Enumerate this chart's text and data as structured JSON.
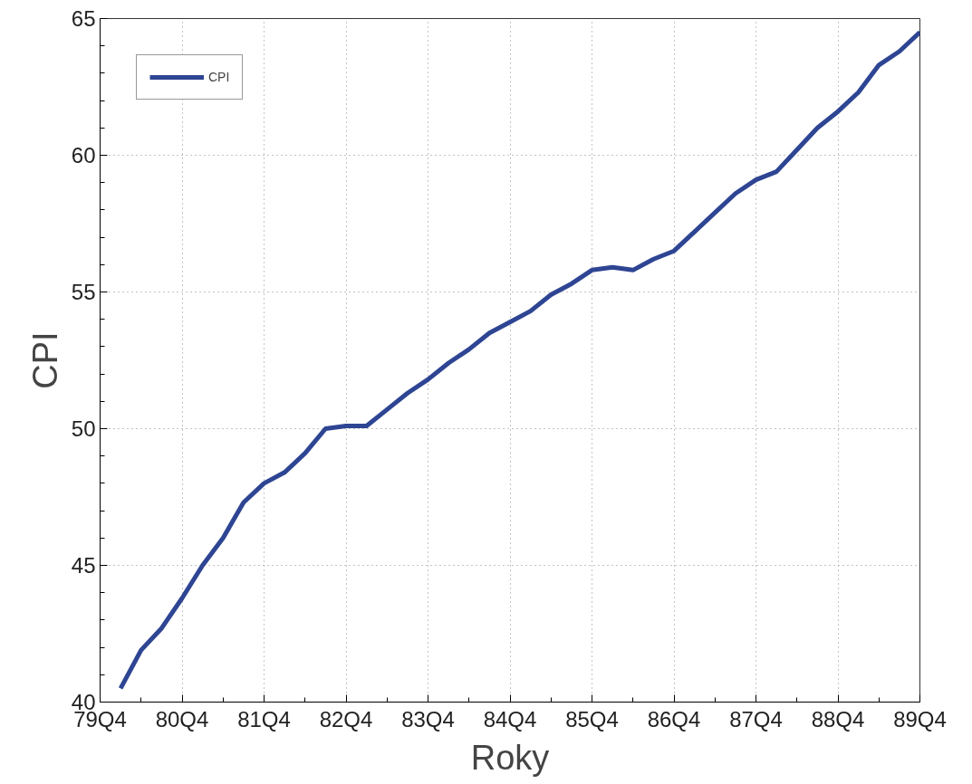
{
  "chart_data": {
    "type": "line",
    "xlabel": "Roky",
    "ylabel": "CPI",
    "categories": [
      "79Q4",
      null,
      null,
      null,
      "80Q4",
      null,
      null,
      null,
      "81Q4",
      null,
      null,
      null,
      "82Q4",
      null,
      null,
      null,
      "83Q4",
      null,
      null,
      null,
      "84Q4",
      null,
      null,
      null,
      "85Q4",
      null,
      null,
      null,
      "86Q4",
      null,
      null,
      null,
      "87Q4",
      null,
      null,
      null,
      "88Q4",
      null,
      null,
      null,
      "89Q4"
    ],
    "series": [
      {
        "name": "CPI",
        "color": "#2e4593",
        "values": [
          null,
          40.5,
          41.9,
          42.7,
          43.8,
          45.0,
          46.0,
          47.3,
          48.0,
          48.4,
          49.1,
          50.0,
          50.1,
          50.1,
          50.7,
          51.3,
          51.8,
          52.4,
          52.9,
          53.5,
          53.9,
          54.3,
          54.9,
          55.3,
          55.8,
          55.9,
          55.8,
          56.2,
          56.5,
          57.2,
          57.9,
          58.6,
          59.1,
          59.4,
          60.2,
          61.0,
          61.6,
          62.3,
          63.3,
          63.8,
          64.5
        ]
      }
    ],
    "ylim": [
      40,
      65
    ],
    "yticks": [
      40,
      45,
      50,
      55,
      60,
      65
    ],
    "grid": true,
    "legend": "top left",
    "line_style": "solid",
    "marker": "none"
  }
}
